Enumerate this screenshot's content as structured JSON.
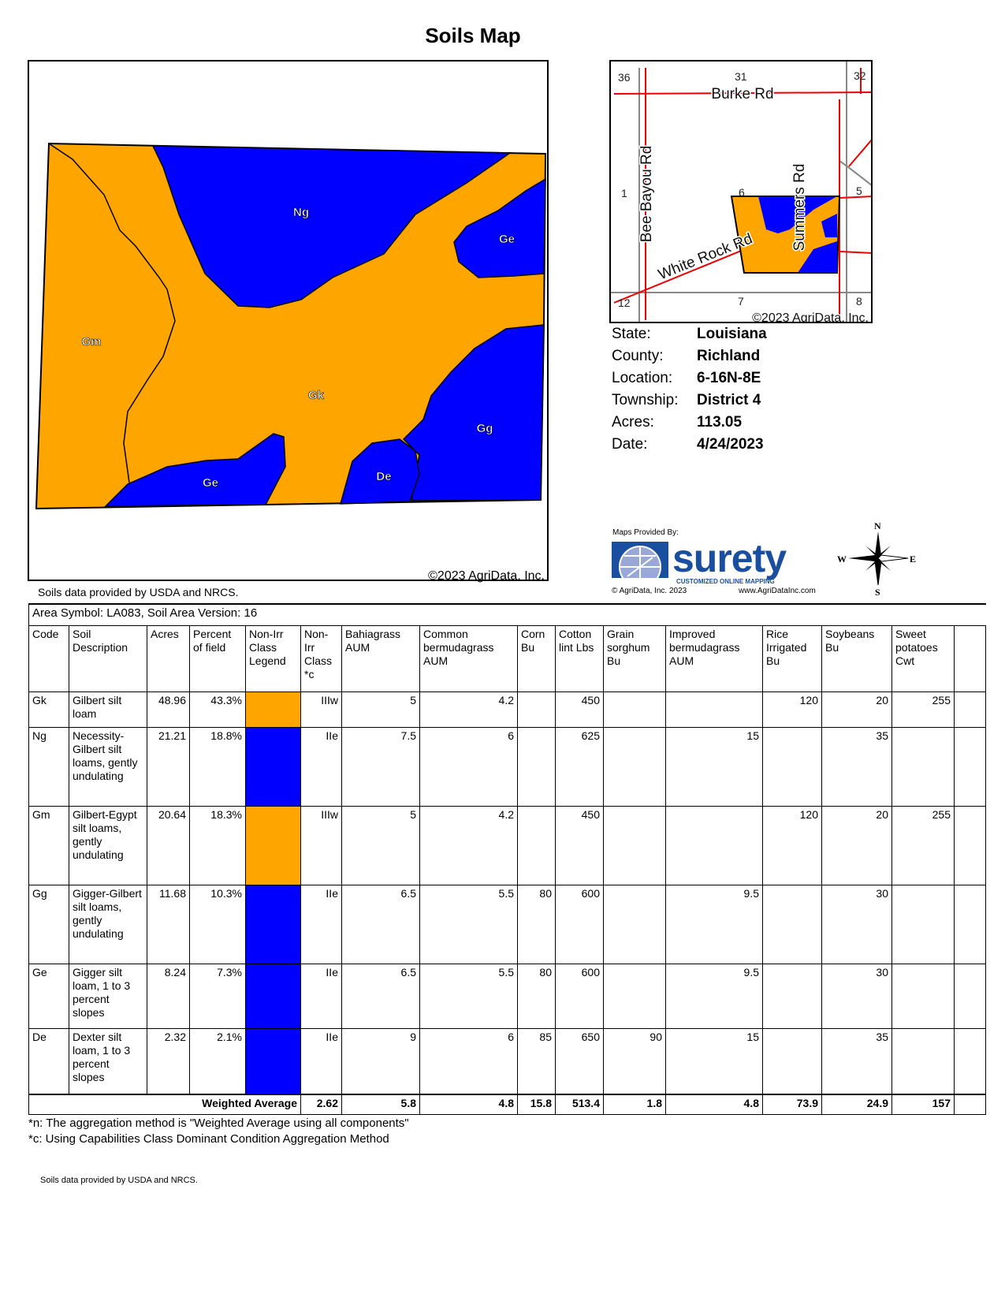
{
  "title": "Soils Map",
  "map": {
    "labels": {
      "Ng": "Ng",
      "Ge1": "Ge",
      "Gm": "Gm",
      "Gk": "Gk",
      "Gg": "Gg",
      "Ge2": "Ge",
      "De": "De"
    },
    "copyright": "©2023 AgriData, Inc.",
    "colors": {
      "orange": "#FFA500",
      "blue": "#0000FF"
    }
  },
  "map_note": "Soils data provided by USDA and NRCS.",
  "locator": {
    "sections": [
      "36",
      "31",
      "32",
      "1",
      "6",
      "5",
      "12",
      "7",
      "8"
    ],
    "roads": {
      "burke": "Burke Rd",
      "bee": "Bee Bayou Rd",
      "summers": "Summers Rd",
      "white": "White Rock Rd"
    },
    "copyright": "©2023 AgriData, Inc."
  },
  "info": [
    {
      "k": "State:",
      "v": "Louisiana"
    },
    {
      "k": "County:",
      "v": "Richland"
    },
    {
      "k": "Location:",
      "v": "6-16N-8E"
    },
    {
      "k": "Township:",
      "v": "District 4"
    },
    {
      "k": "Acres:",
      "v": "113.05"
    },
    {
      "k": "Date:",
      "v": "4/24/2023"
    }
  ],
  "logo": {
    "provided": "Maps Provided By:",
    "brand": "surety",
    "tag": "CUSTOMIZED ONLINE MAPPING",
    "copy": "© AgriData, Inc. 2023",
    "url": "www.AgriDataInc.com"
  },
  "compass": {
    "n": "N",
    "s": "S",
    "e": "E",
    "w": "W"
  },
  "table": {
    "area": "Area Symbol: LA083, Soil Area Version: 16",
    "headers": [
      "Code",
      "Soil Description",
      "Acres",
      "Percent of field",
      "Non-Irr Class Legend",
      "Non-Irr Class *c",
      "Bahiagrass AUM",
      "Common bermudagrass AUM",
      "Corn Bu",
      "Cotton lint Lbs",
      "Grain sorghum Bu",
      "Improved bermudagrass AUM",
      "Rice Irrigated Bu",
      "Soybeans Bu",
      "Sweet potatoes Cwt"
    ],
    "rows": [
      {
        "code": "Gk",
        "desc": "Gilbert silt loam",
        "acres": "48.96",
        "pct": "43.3%",
        "legend": "#FFA500",
        "cls": "IIIw",
        "bahia": "5",
        "common": "4.2",
        "corn": "",
        "cotton": "450",
        "grain": "",
        "improved": "",
        "rice": "120",
        "soy": "20",
        "sweet": "255"
      },
      {
        "code": "Ng",
        "desc": "Necessity-Gilbert silt loams, gently undulating",
        "acres": "21.21",
        "pct": "18.8%",
        "legend": "#0000FF",
        "cls": "IIe",
        "bahia": "7.5",
        "common": "6",
        "corn": "",
        "cotton": "625",
        "grain": "",
        "improved": "15",
        "rice": "",
        "soy": "35",
        "sweet": ""
      },
      {
        "code": "Gm",
        "desc": "Gilbert-Egypt silt loams, gently undulating",
        "acres": "20.64",
        "pct": "18.3%",
        "legend": "#FFA500",
        "cls": "IIIw",
        "bahia": "5",
        "common": "4.2",
        "corn": "",
        "cotton": "450",
        "grain": "",
        "improved": "",
        "rice": "120",
        "soy": "20",
        "sweet": "255"
      },
      {
        "code": "Gg",
        "desc": "Gigger-Gilbert silt loams, gently undulating",
        "acres": "11.68",
        "pct": "10.3%",
        "legend": "#0000FF",
        "cls": "IIe",
        "bahia": "6.5",
        "common": "5.5",
        "corn": "80",
        "cotton": "600",
        "grain": "",
        "improved": "9.5",
        "rice": "",
        "soy": "30",
        "sweet": ""
      },
      {
        "code": "Ge",
        "desc": "Gigger silt loam, 1 to 3 percent slopes",
        "acres": "8.24",
        "pct": "7.3%",
        "legend": "#0000FF",
        "cls": "IIe",
        "bahia": "6.5",
        "common": "5.5",
        "corn": "80",
        "cotton": "600",
        "grain": "",
        "improved": "9.5",
        "rice": "",
        "soy": "30",
        "sweet": ""
      },
      {
        "code": "De",
        "desc": "Dexter silt loam, 1 to 3 percent slopes",
        "acres": "2.32",
        "pct": "2.1%",
        "legend": "#0000FF",
        "cls": "IIe",
        "bahia": "9",
        "common": "6",
        "corn": "85",
        "cotton": "650",
        "grain": "90",
        "improved": "15",
        "rice": "",
        "soy": "35",
        "sweet": ""
      }
    ],
    "weighted": {
      "label": "Weighted Average",
      "cls": "2.62",
      "bahia": "5.8",
      "common": "4.8",
      "corn": "15.8",
      "cotton": "513.4",
      "grain": "1.8",
      "improved": "4.8",
      "rice": "73.9",
      "soy": "24.9",
      "sweet": "157"
    }
  },
  "footnotes": [
    "*n: The aggregation method is \"Weighted Average using all components\"",
    "*c:  Using Capabilities Class Dominant Condition Aggregation Method"
  ],
  "footer": "Soils data provided by USDA and NRCS."
}
